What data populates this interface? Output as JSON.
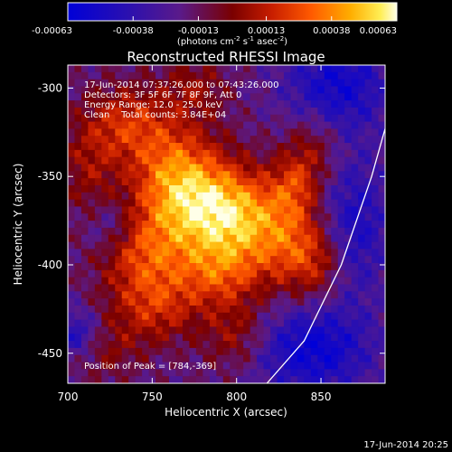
{
  "chart_data": {
    "type": "heatmap",
    "title": "Reconstructed RHESSI Image",
    "xlabel": "Heliocentric X (arcsec)",
    "ylabel": "Heliocentric Y (arcsec)",
    "xlim": [
      700,
      888
    ],
    "ylim": [
      -467,
      -287
    ],
    "x_ticks": [
      700,
      750,
      800,
      850
    ],
    "y_ticks": [
      -300,
      -350,
      -400,
      -450
    ],
    "colorbar": {
      "min": -0.00063,
      "max": 0.00063,
      "tick_values": [
        -0.00063,
        -0.00038,
        -0.00013,
        0.00013,
        0.00038,
        0.00063
      ],
      "tick_labels": [
        "-0.00063",
        "-0.00038",
        "-0.00013",
        "0.00013",
        "0.00038",
        "0.00063"
      ],
      "unit_prefix": "(photons cm",
      "unit_exp1": "-2",
      "unit_mid": " s",
      "unit_exp2": "-1",
      "unit_mid2": " asec",
      "unit_exp3": "-2",
      "unit_suffix": ")"
    },
    "annotations": {
      "time_range": "17-Jun-2014 07:37:26.000 to 07:43:26.000",
      "detectors": "Detectors: 3F 5F 6F 7F 8F 9F, Att 0",
      "energy": "Energy Range: 12.0 - 25.0 keV",
      "method": "Clean    Total counts: 3.84E+04",
      "peak": "Position of Peak = [784,-369]"
    },
    "peak": {
      "x": 784,
      "y": -369
    },
    "sources": [
      {
        "x": 780,
        "y": -368,
        "amp": 0.00058,
        "sx": 22,
        "sy": 20
      },
      {
        "x": 762,
        "y": -345,
        "amp": 0.00036,
        "sx": 18,
        "sy": 20
      },
      {
        "x": 735,
        "y": -320,
        "amp": 0.00032,
        "sx": 17,
        "sy": 15
      },
      {
        "x": 745,
        "y": -395,
        "amp": 0.00036,
        "sx": 18,
        "sy": 18
      },
      {
        "x": 712,
        "y": -345,
        "amp": 0.0002,
        "sx": 12,
        "sy": 20
      },
      {
        "x": 790,
        "y": -405,
        "amp": 0.00034,
        "sx": 18,
        "sy": 14
      },
      {
        "x": 805,
        "y": -375,
        "amp": 0.00034,
        "sx": 17,
        "sy": 18
      },
      {
        "x": 830,
        "y": -385,
        "amp": 0.00032,
        "sx": 14,
        "sy": 20
      },
      {
        "x": 848,
        "y": -398,
        "amp": 0.00028,
        "sx": 12,
        "sy": 16
      },
      {
        "x": 752,
        "y": -425,
        "amp": 0.00028,
        "sx": 18,
        "sy": 14
      },
      {
        "x": 800,
        "y": -440,
        "amp": 0.00024,
        "sx": 14,
        "sy": 14
      },
      {
        "x": 845,
        "y": -333,
        "amp": 0.00022,
        "sx": 12,
        "sy": 14
      },
      {
        "x": 835,
        "y": -355,
        "amp": 0.00026,
        "sx": 10,
        "sy": 12
      },
      {
        "x": 775,
        "y": -300,
        "amp": 0.0002,
        "sx": 14,
        "sy": 12
      },
      {
        "x": 720,
        "y": -448,
        "amp": 0.00018,
        "sx": 16,
        "sy": 12
      },
      {
        "x": 860,
        "y": -298,
        "amp": -0.00036,
        "sx": 22,
        "sy": 20
      },
      {
        "x": 845,
        "y": -448,
        "amp": -0.0004,
        "sx": 25,
        "sy": 18
      },
      {
        "x": 705,
        "y": -440,
        "amp": -0.00032,
        "sx": 10,
        "sy": 10
      },
      {
        "x": 725,
        "y": -378,
        "amp": -0.00018,
        "sx": 10,
        "sy": 10
      },
      {
        "x": 870,
        "y": -378,
        "amp": -0.0003,
        "sx": 15,
        "sy": 28
      }
    ],
    "background_level": -0.00018,
    "limb_curve": [
      [
        818,
        -467
      ],
      [
        840,
        -443
      ],
      [
        862,
        -400
      ],
      [
        880,
        -350
      ],
      [
        888,
        -323
      ]
    ],
    "footer_timestamp": "17-Jun-2014 20:25"
  }
}
